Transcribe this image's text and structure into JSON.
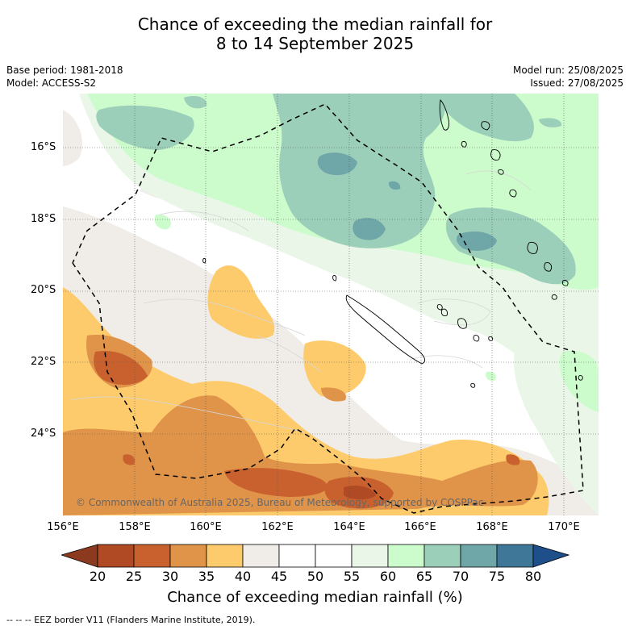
{
  "title_line1": "Chance of exceeding the median rainfall for",
  "title_line2": "8 to 14 September 2025",
  "meta": {
    "base_period": "Base period: 1981-2018",
    "model": "Model: ACCESS-S2",
    "model_run": "Model run: 25/08/2025",
    "issued": "Issued: 27/08/2025"
  },
  "map": {
    "lat_labels": [
      "16°S",
      "18°S",
      "20°S",
      "22°S",
      "24°S"
    ],
    "lon_labels": [
      "156°E",
      "158°E",
      "160°E",
      "162°E",
      "164°E",
      "166°E",
      "168°E",
      "170°E"
    ],
    "copyright": "© Commonwealth of Australia 2025, Bureau of Meteorology, supported by COSPPac",
    "extent": {
      "lon_min": 156,
      "lon_max": 171,
      "lat_min": -26.2,
      "lat_max": -14.4
    }
  },
  "colorbar": {
    "title": "Chance of exceeding median rainfall (%)",
    "ticks": [
      "20",
      "25",
      "30",
      "35",
      "40",
      "45",
      "50",
      "55",
      "60",
      "65",
      "70",
      "75",
      "80"
    ],
    "colors": {
      "lt20": "#8b3a1f",
      "20-25": "#b04a25",
      "25-30": "#c9612f",
      "30-35": "#e0944a",
      "35-40": "#fdcb6b",
      "40-45": "#f0ede8",
      "45-50": "#ffffff",
      "50-55": "#ffffff",
      "55-60": "#eaf7e8",
      "60-65": "#ccfccc",
      "65-70": "#9ccfba",
      "70-75": "#6fa6a8",
      "75-80": "#3e7798",
      "gt80": "#1f4f8a"
    }
  },
  "legend": "--  --  -- EEZ border V11 (Flanders Marine Institute, 2019)."
}
